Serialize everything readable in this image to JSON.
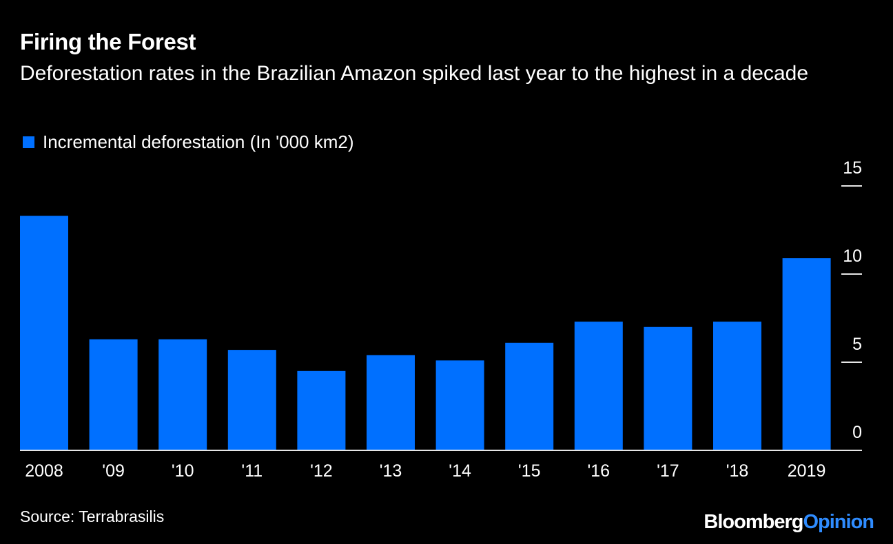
{
  "header": {
    "title": "Firing the Forest",
    "subtitle": "Deforestation rates in the Brazilian Amazon spiked last year to the highest in a decade"
  },
  "footer": {
    "source": "Source: Terrabrasilis",
    "brand_part1": "Bloomberg",
    "brand_part2": "Opinion"
  },
  "colors": {
    "bar": "#0070ff",
    "axis": "#ffffff",
    "background": "#000000"
  },
  "chart_data": {
    "type": "bar",
    "title": "Firing the Forest",
    "subtitle": "Deforestation rates in the Brazilian Amazon spiked last year to the highest in a decade",
    "xlabel": "",
    "ylabel": "",
    "legend": [
      {
        "name": "Incremental deforestation (In '000 km2)",
        "color": "#0070ff"
      }
    ],
    "legend_position": "top-left",
    "categories": [
      "2008",
      "'09",
      "'10",
      "'11",
      "'12",
      "'13",
      "'14",
      "'15",
      "'16",
      "'17",
      "'18",
      "2019"
    ],
    "series": [
      {
        "name": "Incremental deforestation (In '000 km2)",
        "values": [
          13.3,
          6.3,
          6.3,
          5.7,
          4.5,
          5.4,
          5.1,
          6.1,
          7.3,
          7.0,
          7.3,
          10.9
        ]
      }
    ],
    "yticks": [
      0,
      5,
      10,
      15
    ],
    "ylim": [
      0,
      15
    ],
    "y_axis_side": "right",
    "grid": false
  }
}
